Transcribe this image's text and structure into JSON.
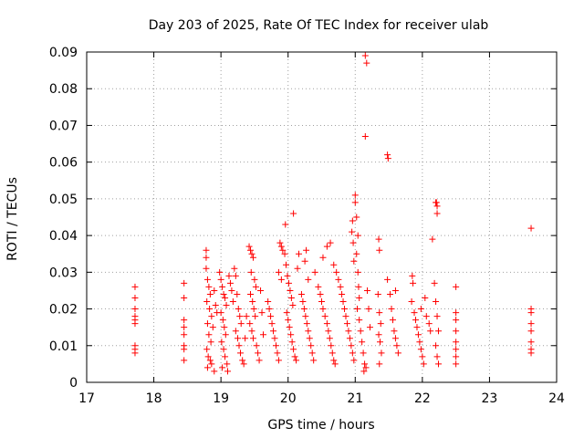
{
  "chart_data": {
    "type": "scatter",
    "title": "Day 203 of 2025, Rate Of TEC Index for receiver ulab",
    "xlabel": "GPS time / hours",
    "ylabel": "ROTI / TECUs",
    "xlim": [
      17,
      24
    ],
    "ylim": [
      0,
      0.09
    ],
    "xticks": [
      17,
      18,
      19,
      20,
      21,
      22,
      23,
      24
    ],
    "xtick_labels": [
      "17",
      "18",
      "19",
      "20",
      "21",
      "22",
      "23",
      "24"
    ],
    "yticks": [
      0,
      0.01,
      0.02,
      0.03,
      0.04,
      0.05,
      0.06,
      0.07,
      0.08,
      0.09
    ],
    "ytick_labels": [
      "0",
      "0.01",
      "0.02",
      "0.03",
      "0.04",
      "0.05",
      "0.06",
      "0.07",
      "0.08",
      "0.09"
    ],
    "grid": true,
    "marker": "plus",
    "color": "#ff0000",
    "series": [
      {
        "points": [
          [
            17.72,
            0.026
          ],
          [
            17.72,
            0.023
          ],
          [
            17.72,
            0.02
          ],
          [
            17.72,
            0.018
          ],
          [
            17.72,
            0.017
          ],
          [
            17.72,
            0.016
          ],
          [
            17.72,
            0.01
          ],
          [
            17.72,
            0.009
          ],
          [
            17.72,
            0.008
          ],
          [
            18.45,
            0.027
          ],
          [
            18.45,
            0.023
          ],
          [
            18.45,
            0.017
          ],
          [
            18.45,
            0.015
          ],
          [
            18.45,
            0.013
          ],
          [
            18.45,
            0.01
          ],
          [
            18.45,
            0.009
          ],
          [
            18.45,
            0.006
          ],
          [
            18.78,
            0.036
          ],
          [
            18.78,
            0.034
          ],
          [
            18.78,
            0.031
          ],
          [
            18.8,
            0.028
          ],
          [
            18.82,
            0.026
          ],
          [
            18.84,
            0.024
          ],
          [
            18.79,
            0.022
          ],
          [
            18.83,
            0.02
          ],
          [
            18.86,
            0.018
          ],
          [
            18.8,
            0.016
          ],
          [
            18.88,
            0.015
          ],
          [
            18.82,
            0.013
          ],
          [
            18.85,
            0.011
          ],
          [
            18.79,
            0.009
          ],
          [
            18.81,
            0.007
          ],
          [
            18.84,
            0.006
          ],
          [
            18.86,
            0.005
          ],
          [
            18.8,
            0.004
          ],
          [
            18.9,
            0.003
          ],
          [
            18.92,
            0.021
          ],
          [
            18.94,
            0.019
          ],
          [
            18.9,
            0.025
          ],
          [
            18.98,
            0.03
          ],
          [
            19.0,
            0.028
          ],
          [
            19.02,
            0.026
          ],
          [
            19.04,
            0.024
          ],
          [
            19.06,
            0.023
          ],
          [
            19.08,
            0.021
          ],
          [
            19.0,
            0.019
          ],
          [
            19.03,
            0.017
          ],
          [
            19.05,
            0.015
          ],
          [
            19.07,
            0.013
          ],
          [
            19.01,
            0.011
          ],
          [
            19.04,
            0.009
          ],
          [
            19.06,
            0.007
          ],
          [
            19.09,
            0.005
          ],
          [
            19.02,
            0.004
          ],
          [
            19.1,
            0.003
          ],
          [
            19.12,
            0.029
          ],
          [
            19.14,
            0.027
          ],
          [
            19.16,
            0.025
          ],
          [
            19.18,
            0.022
          ],
          [
            19.2,
            0.031
          ],
          [
            19.22,
            0.029
          ],
          [
            19.24,
            0.024
          ],
          [
            19.26,
            0.02
          ],
          [
            19.28,
            0.018
          ],
          [
            19.3,
            0.016
          ],
          [
            19.22,
            0.014
          ],
          [
            19.25,
            0.012
          ],
          [
            19.27,
            0.01
          ],
          [
            19.29,
            0.008
          ],
          [
            19.32,
            0.006
          ],
          [
            19.34,
            0.005
          ],
          [
            19.36,
            0.012
          ],
          [
            19.38,
            0.018
          ],
          [
            19.42,
            0.037
          ],
          [
            19.44,
            0.036
          ],
          [
            19.46,
            0.035
          ],
          [
            19.48,
            0.034
          ],
          [
            19.45,
            0.03
          ],
          [
            19.5,
            0.028
          ],
          [
            19.52,
            0.026
          ],
          [
            19.44,
            0.024
          ],
          [
            19.47,
            0.022
          ],
          [
            19.49,
            0.02
          ],
          [
            19.51,
            0.018
          ],
          [
            19.43,
            0.016
          ],
          [
            19.46,
            0.014
          ],
          [
            19.48,
            0.012
          ],
          [
            19.53,
            0.01
          ],
          [
            19.55,
            0.008
          ],
          [
            19.57,
            0.006
          ],
          [
            19.59,
            0.025
          ],
          [
            19.61,
            0.019
          ],
          [
            19.63,
            0.013
          ],
          [
            19.7,
            0.022
          ],
          [
            19.72,
            0.02
          ],
          [
            19.74,
            0.018
          ],
          [
            19.76,
            0.016
          ],
          [
            19.78,
            0.014
          ],
          [
            19.8,
            0.012
          ],
          [
            19.82,
            0.01
          ],
          [
            19.84,
            0.008
          ],
          [
            19.86,
            0.006
          ],
          [
            19.88,
            0.038
          ],
          [
            19.9,
            0.037
          ],
          [
            19.92,
            0.036
          ],
          [
            19.86,
            0.03
          ],
          [
            19.9,
            0.028
          ],
          [
            19.96,
            0.043
          ],
          [
            19.95,
            0.035
          ],
          [
            19.97,
            0.032
          ],
          [
            19.99,
            0.029
          ],
          [
            20.01,
            0.027
          ],
          [
            20.03,
            0.025
          ],
          [
            20.05,
            0.023
          ],
          [
            20.07,
            0.021
          ],
          [
            19.98,
            0.019
          ],
          [
            20.0,
            0.017
          ],
          [
            20.02,
            0.015
          ],
          [
            20.04,
            0.013
          ],
          [
            20.06,
            0.011
          ],
          [
            20.08,
            0.009
          ],
          [
            20.1,
            0.007
          ],
          [
            20.12,
            0.006
          ],
          [
            20.08,
            0.046
          ],
          [
            20.14,
            0.031
          ],
          [
            20.16,
            0.035
          ],
          [
            20.2,
            0.024
          ],
          [
            20.22,
            0.022
          ],
          [
            20.24,
            0.02
          ],
          [
            20.26,
            0.018
          ],
          [
            20.28,
            0.016
          ],
          [
            20.3,
            0.014
          ],
          [
            20.32,
            0.012
          ],
          [
            20.34,
            0.01
          ],
          [
            20.36,
            0.008
          ],
          [
            20.38,
            0.006
          ],
          [
            20.25,
            0.033
          ],
          [
            20.27,
            0.036
          ],
          [
            20.3,
            0.028
          ],
          [
            20.4,
            0.03
          ],
          [
            20.45,
            0.026
          ],
          [
            20.48,
            0.024
          ],
          [
            20.5,
            0.022
          ],
          [
            20.52,
            0.02
          ],
          [
            20.55,
            0.018
          ],
          [
            20.58,
            0.016
          ],
          [
            20.6,
            0.014
          ],
          [
            20.62,
            0.012
          ],
          [
            20.64,
            0.01
          ],
          [
            20.66,
            0.008
          ],
          [
            20.68,
            0.006
          ],
          [
            20.7,
            0.005
          ],
          [
            20.52,
            0.034
          ],
          [
            20.58,
            0.037
          ],
          [
            20.63,
            0.038
          ],
          [
            20.68,
            0.032
          ],
          [
            20.72,
            0.03
          ],
          [
            20.75,
            0.028
          ],
          [
            20.78,
            0.026
          ],
          [
            20.8,
            0.024
          ],
          [
            20.82,
            0.022
          ],
          [
            20.84,
            0.02
          ],
          [
            20.86,
            0.018
          ],
          [
            20.88,
            0.016
          ],
          [
            20.9,
            0.014
          ],
          [
            20.92,
            0.012
          ],
          [
            20.94,
            0.01
          ],
          [
            20.96,
            0.008
          ],
          [
            20.98,
            0.006
          ],
          [
            20.95,
            0.041
          ],
          [
            20.96,
            0.044
          ],
          [
            20.97,
            0.038
          ],
          [
            20.98,
            0.033
          ],
          [
            21.0,
            0.051
          ],
          [
            21.0,
            0.049
          ],
          [
            21.02,
            0.045
          ],
          [
            21.04,
            0.04
          ],
          [
            21.02,
            0.035
          ],
          [
            21.04,
            0.03
          ],
          [
            21.05,
            0.026
          ],
          [
            21.06,
            0.023
          ],
          [
            21.03,
            0.02
          ],
          [
            21.06,
            0.017
          ],
          [
            21.08,
            0.014
          ],
          [
            21.1,
            0.011
          ],
          [
            21.12,
            0.008
          ],
          [
            21.14,
            0.005
          ],
          [
            21.16,
            0.004
          ],
          [
            21.13,
            0.003
          ],
          [
            21.15,
            0.089
          ],
          [
            21.17,
            0.087
          ],
          [
            21.15,
            0.067
          ],
          [
            21.18,
            0.025
          ],
          [
            21.2,
            0.02
          ],
          [
            21.22,
            0.015
          ],
          [
            21.35,
            0.039
          ],
          [
            21.36,
            0.036
          ],
          [
            21.34,
            0.024
          ],
          [
            21.36,
            0.019
          ],
          [
            21.38,
            0.016
          ],
          [
            21.35,
            0.013
          ],
          [
            21.37,
            0.011
          ],
          [
            21.39,
            0.008
          ],
          [
            21.36,
            0.005
          ],
          [
            21.48,
            0.062
          ],
          [
            21.49,
            0.061
          ],
          [
            21.48,
            0.028
          ],
          [
            21.52,
            0.024
          ],
          [
            21.54,
            0.02
          ],
          [
            21.56,
            0.017
          ],
          [
            21.58,
            0.014
          ],
          [
            21.6,
            0.012
          ],
          [
            21.62,
            0.01
          ],
          [
            21.64,
            0.008
          ],
          [
            21.6,
            0.025
          ],
          [
            21.85,
            0.029
          ],
          [
            21.86,
            0.027
          ],
          [
            21.84,
            0.022
          ],
          [
            21.88,
            0.019
          ],
          [
            21.9,
            0.017
          ],
          [
            21.92,
            0.015
          ],
          [
            21.94,
            0.013
          ],
          [
            21.96,
            0.011
          ],
          [
            21.98,
            0.009
          ],
          [
            22.0,
            0.007
          ],
          [
            22.02,
            0.005
          ],
          [
            21.98,
            0.02
          ],
          [
            22.04,
            0.023
          ],
          [
            22.06,
            0.018
          ],
          [
            22.1,
            0.016
          ],
          [
            22.12,
            0.014
          ],
          [
            22.15,
            0.039
          ],
          [
            22.2,
            0.049
          ],
          [
            22.22,
            0.048
          ],
          [
            22.21,
            0.049
          ],
          [
            22.22,
            0.046
          ],
          [
            22.18,
            0.027
          ],
          [
            22.2,
            0.022
          ],
          [
            22.22,
            0.018
          ],
          [
            22.24,
            0.014
          ],
          [
            22.2,
            0.01
          ],
          [
            22.22,
            0.007
          ],
          [
            22.24,
            0.005
          ],
          [
            22.5,
            0.026
          ],
          [
            22.5,
            0.019
          ],
          [
            22.5,
            0.017
          ],
          [
            22.5,
            0.014
          ],
          [
            22.5,
            0.011
          ],
          [
            22.5,
            0.009
          ],
          [
            22.5,
            0.007
          ],
          [
            22.5,
            0.005
          ],
          [
            23.62,
            0.042
          ],
          [
            23.62,
            0.02
          ],
          [
            23.62,
            0.019
          ],
          [
            23.62,
            0.016
          ],
          [
            23.62,
            0.014
          ],
          [
            23.62,
            0.011
          ],
          [
            23.62,
            0.009
          ],
          [
            23.62,
            0.008
          ]
        ]
      }
    ]
  }
}
